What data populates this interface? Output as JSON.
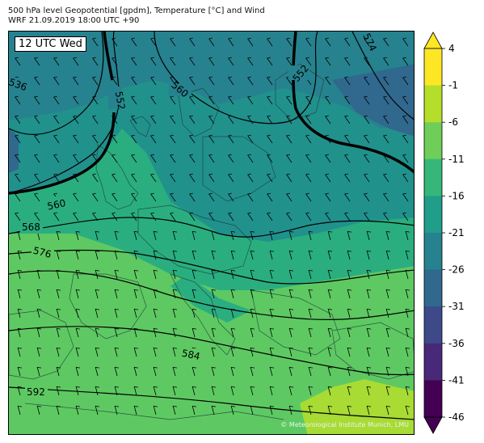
{
  "header": {
    "title_line1": "500 hPa level Geopotential [gpdm], Temperature [°C] and Wind",
    "title_line2": "WRF 21.09.2019 18:00 UTC +90"
  },
  "map": {
    "time_label": "12 UTC Wed",
    "credit": "© Meteorological Institute Munich, LMU",
    "contour_labels": [
      {
        "id": "c536",
        "text": "536"
      },
      {
        "id": "c552a",
        "text": "552"
      },
      {
        "id": "c560a",
        "text": "560"
      },
      {
        "id": "c552b",
        "text": "552"
      },
      {
        "id": "c574",
        "text": "574"
      },
      {
        "id": "c560b",
        "text": "560"
      },
      {
        "id": "c568",
        "text": "568"
      },
      {
        "id": "c576",
        "text": "576"
      },
      {
        "id": "c584",
        "text": "584"
      },
      {
        "id": "c592",
        "text": "592"
      }
    ]
  },
  "colorbar": {
    "ticks": [
      "4",
      "-1",
      "-6",
      "-11",
      "-16",
      "-21",
      "-26",
      "-31",
      "-36",
      "-41",
      "-46"
    ],
    "colors": [
      "#fde725",
      "#a0da39",
      "#4ac16d",
      "#1fa187",
      "#277f8e",
      "#365c8d",
      "#46327e",
      "#440154"
    ],
    "levels": [
      {
        "value": "4",
        "color": "#fde725"
      },
      {
        "value": "-1",
        "color": "#b5de2b"
      },
      {
        "value": "-6",
        "color": "#6ece58"
      },
      {
        "value": "-11",
        "color": "#35b779"
      },
      {
        "value": "-16",
        "color": "#1f9e89"
      },
      {
        "value": "-21",
        "color": "#26828e"
      },
      {
        "value": "-26",
        "color": "#31688e"
      },
      {
        "value": "-31",
        "color": "#3e4989"
      },
      {
        "value": "-36",
        "color": "#482878"
      },
      {
        "value": "-41",
        "color": "#440154"
      }
    ]
  }
}
